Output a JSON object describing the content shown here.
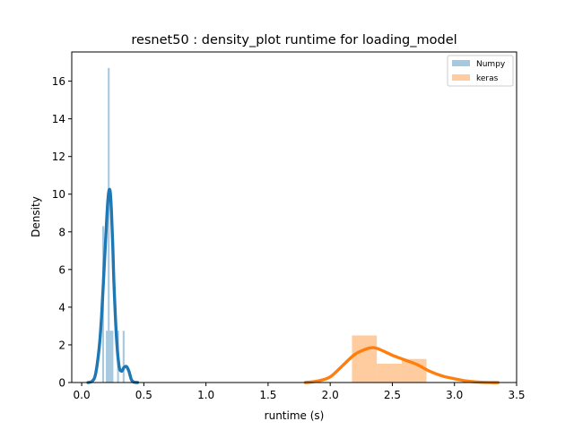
{
  "chart_data": {
    "type": "histogram+kde",
    "title": "resnet50 : density_plot runtime  for loading_model",
    "xlabel": "runtime (s)",
    "ylabel": "Density",
    "xlim": [
      -0.08,
      3.5
    ],
    "ylim": [
      0,
      17.55
    ],
    "x_ticks": [
      0.0,
      0.5,
      1.0,
      1.5,
      2.0,
      2.5,
      3.0,
      3.5
    ],
    "x_tick_labels": [
      "0.0",
      "0.5",
      "1.0",
      "1.5",
      "2.0",
      "2.5",
      "3.0",
      "3.5"
    ],
    "y_ticks": [
      0,
      2,
      4,
      6,
      8,
      10,
      12,
      14,
      16
    ],
    "y_tick_labels": [
      "0",
      "2",
      "4",
      "6",
      "8",
      "10",
      "12",
      "14",
      "16"
    ],
    "grid": false,
    "legend_position": "top-right",
    "series": [
      {
        "name": "Numpy",
        "color": "#1f77b4",
        "hist_alpha": 0.4,
        "bins": [
          {
            "x0": 0.165,
            "x1": 0.18,
            "density": 8.3
          },
          {
            "x0": 0.18,
            "x1": 0.195,
            "density": 0.0
          },
          {
            "x0": 0.195,
            "x1": 0.21,
            "density": 2.75
          },
          {
            "x0": 0.21,
            "x1": 0.225,
            "density": 16.7
          },
          {
            "x0": 0.225,
            "x1": 0.24,
            "density": 2.75
          },
          {
            "x0": 0.24,
            "x1": 0.255,
            "density": 2.75
          },
          {
            "x0": 0.255,
            "x1": 0.27,
            "density": 0.0
          },
          {
            "x0": 0.27,
            "x1": 0.285,
            "density": 0.0
          },
          {
            "x0": 0.285,
            "x1": 0.3,
            "density": 2.75
          },
          {
            "x0": 0.3,
            "x1": 0.315,
            "density": 0.0
          },
          {
            "x0": 0.315,
            "x1": 0.33,
            "density": 0.0
          },
          {
            "x0": 0.33,
            "x1": 0.345,
            "density": 2.75
          }
        ],
        "kde": {
          "x": [
            0.05,
            0.08,
            0.11,
            0.14,
            0.16,
            0.18,
            0.2,
            0.21,
            0.22,
            0.23,
            0.24,
            0.25,
            0.26,
            0.28,
            0.3,
            0.32,
            0.34,
            0.36,
            0.38,
            0.4,
            0.42,
            0.45
          ],
          "y": [
            0.0,
            0.05,
            0.4,
            1.8,
            3.5,
            6.0,
            8.5,
            9.6,
            10.2,
            10.1,
            9.0,
            7.3,
            5.2,
            2.4,
            0.9,
            0.6,
            0.8,
            0.85,
            0.6,
            0.15,
            0.02,
            0.0
          ]
        }
      },
      {
        "name": "keras",
        "color": "#ff7f0e",
        "hist_alpha": 0.4,
        "bins": [
          {
            "x0": 2.175,
            "x1": 2.375,
            "density": 2.5
          },
          {
            "x0": 2.375,
            "x1": 2.575,
            "density": 1.0
          },
          {
            "x0": 2.575,
            "x1": 2.775,
            "density": 1.25
          }
        ],
        "kde": {
          "x": [
            1.8,
            1.9,
            2.0,
            2.1,
            2.2,
            2.3,
            2.35,
            2.4,
            2.5,
            2.6,
            2.7,
            2.8,
            2.9,
            3.0,
            3.1,
            3.2,
            3.3,
            3.35
          ],
          "y": [
            0.0,
            0.08,
            0.3,
            0.9,
            1.5,
            1.8,
            1.85,
            1.75,
            1.45,
            1.2,
            0.95,
            0.6,
            0.35,
            0.2,
            0.08,
            0.02,
            0.0,
            0.0
          ]
        }
      }
    ]
  }
}
